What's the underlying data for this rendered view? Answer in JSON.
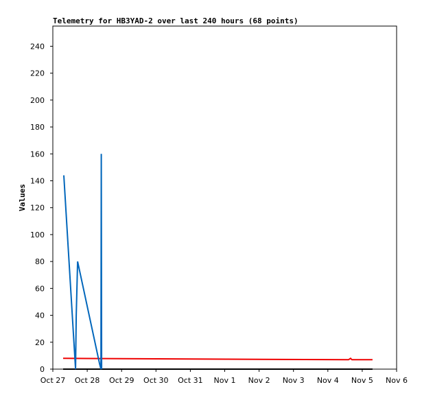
{
  "chart_data": {
    "type": "line",
    "title": "Telemetry for HB3YAD-2 over last 240 hours (68 points)",
    "y_label": "Values",
    "xlim": [
      0,
      10
    ],
    "xticks": [
      {
        "value": 0,
        "label": "Oct 27"
      },
      {
        "value": 1,
        "label": "Oct 28"
      },
      {
        "value": 2,
        "label": "Oct 29"
      },
      {
        "value": 3,
        "label": "Oct 30"
      },
      {
        "value": 4,
        "label": "Oct 31"
      },
      {
        "value": 5,
        "label": "Nov 1"
      },
      {
        "value": 6,
        "label": "Nov 2"
      },
      {
        "value": 7,
        "label": "Nov 3"
      },
      {
        "value": 8,
        "label": "Nov 4"
      },
      {
        "value": 9,
        "label": "Nov 5"
      },
      {
        "value": 10,
        "label": "Nov 6"
      }
    ],
    "ylim": [
      0,
      255
    ],
    "yticks": [
      0,
      20,
      40,
      60,
      80,
      100,
      120,
      140,
      160,
      180,
      200,
      220,
      240
    ],
    "series": [
      {
        "color": "#000000",
        "x": [
          0.3,
          9.3
        ],
        "values": [
          0,
          0
        ]
      },
      {
        "color": "#ee0000",
        "x": [
          0.3,
          8.6,
          8.66,
          8.7,
          9.3
        ],
        "values": [
          8,
          7,
          8,
          7,
          7
        ]
      },
      {
        "color": "#0066bb",
        "x": [
          0.32,
          0.66,
          0.68,
          0.72,
          1.36,
          1.4,
          1.41,
          1.42
        ],
        "values": [
          144,
          0,
          40,
          80,
          4,
          0,
          160,
          0
        ]
      }
    ]
  }
}
